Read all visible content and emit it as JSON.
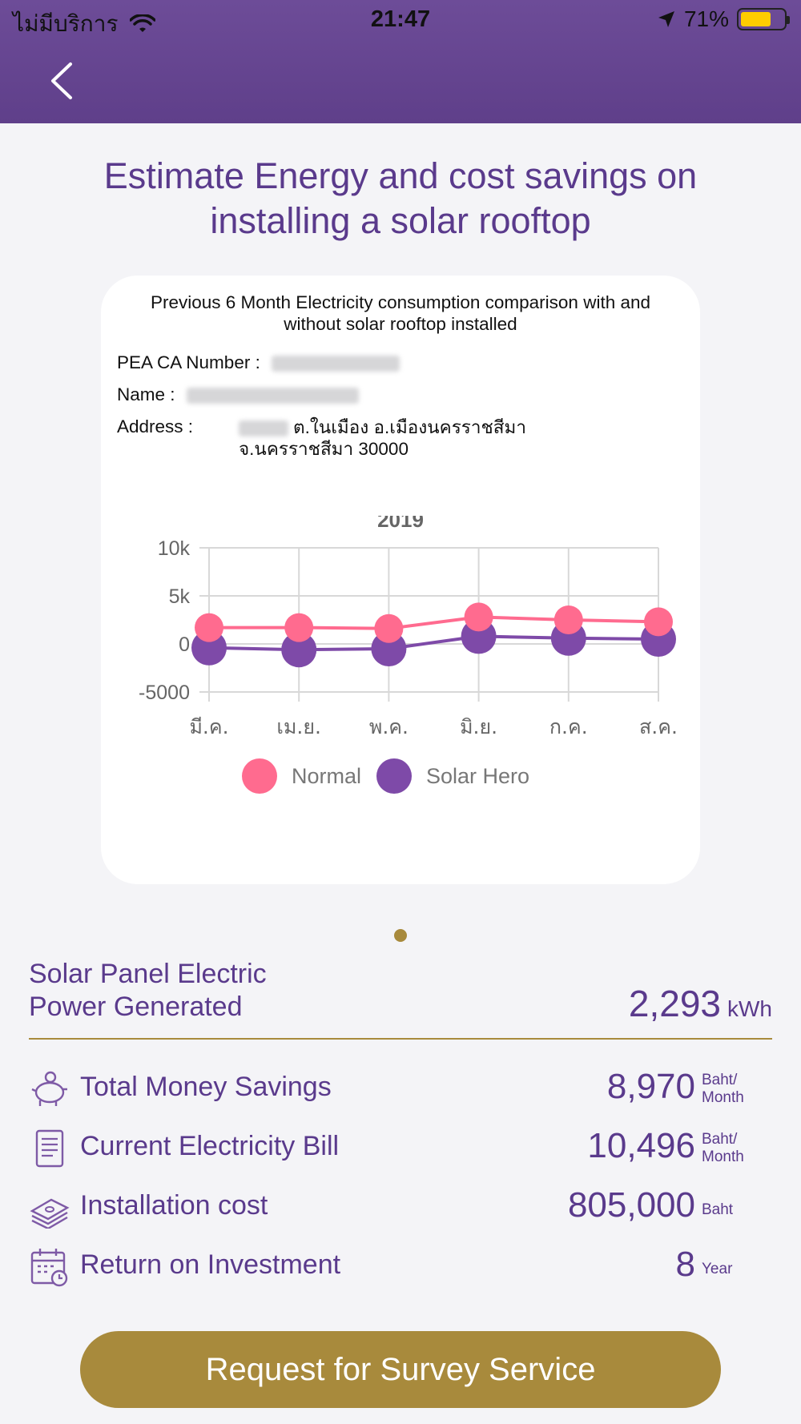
{
  "status_bar": {
    "carrier": "ไม่มีบริการ",
    "time": "21:47",
    "battery": "71%"
  },
  "page": {
    "title": "Estimate Energy and cost savings on installing a solar rooftop"
  },
  "card": {
    "heading": "Previous 6 Month Electricity consumption comparison with and without solar rooftop installed",
    "ca_label": "PEA CA Number :",
    "name_label": "Name :",
    "address_label": "Address :",
    "address_line1": "ต.ในเมือง อ.เมืองนครราชสีมา",
    "address_line2": "จ.นครราชสีมา 30000"
  },
  "chart_data": {
    "type": "line",
    "title": "2019",
    "categories": [
      "มี.ค.",
      "เม.ย.",
      "พ.ค.",
      "มิ.ย.",
      "ก.ค.",
      "ส.ค."
    ],
    "series": [
      {
        "name": "Normal",
        "color": "#ff6b8f",
        "values": [
          1700,
          1700,
          1600,
          2800,
          2500,
          2300
        ]
      },
      {
        "name": "Solar Hero",
        "color": "#7e4aa8",
        "values": [
          -400,
          -600,
          -500,
          800,
          600,
          500
        ]
      }
    ],
    "y_ticks": [
      "10k",
      "5k",
      "0",
      "-5000"
    ],
    "y_tick_values": [
      10000,
      5000,
      0,
      -5000
    ],
    "ylim": [
      -5000,
      10000
    ],
    "grid": true,
    "legend": "bottom"
  },
  "generated": {
    "label": "Solar Panel Electric Power Generated",
    "value": "2,293",
    "unit": "kWh"
  },
  "stats": [
    {
      "label": "Total Money Savings",
      "value": "8,970",
      "unit": "Baht/ Month",
      "icon": "piggy-bank-icon"
    },
    {
      "label": "Current Electricity Bill",
      "value": "10,496",
      "unit": "Baht/ Month",
      "icon": "bill-icon"
    },
    {
      "label": "Installation cost",
      "value": "805,000",
      "unit": "Baht",
      "icon": "money-stack-icon"
    },
    {
      "label": "Return on Investment",
      "value": "8",
      "unit": "Year",
      "icon": "calendar-clock-icon"
    }
  ],
  "survey_button": {
    "label": "Request for Survey Service"
  },
  "colors": {
    "primary": "#5a3a8c",
    "gold": "#a88a3c",
    "normal": "#ff6b8f",
    "solar": "#7e4aa8"
  }
}
